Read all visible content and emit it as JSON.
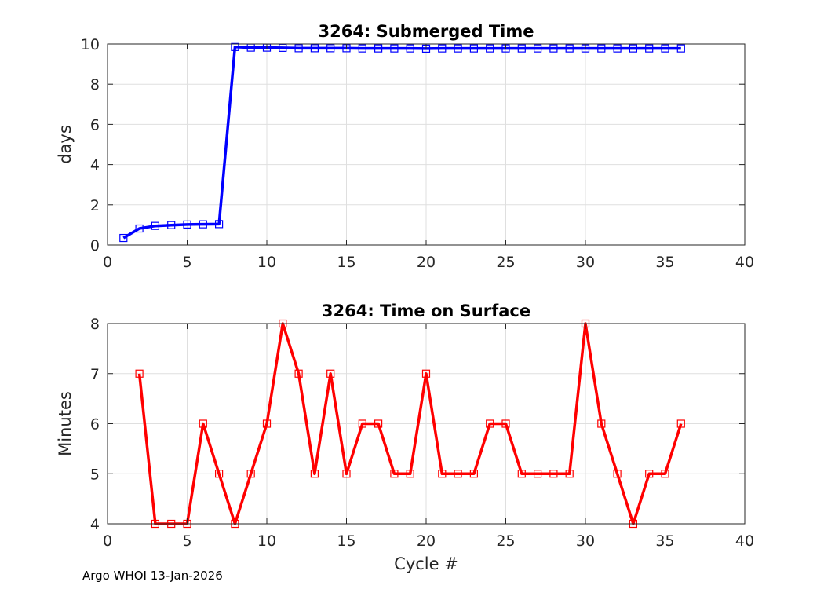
{
  "footer": {
    "text": "Argo WHOI 13-Jan-2026"
  },
  "chart_data": [
    {
      "type": "line",
      "title": "3264: Submerged Time",
      "xlabel": "",
      "ylabel": "days",
      "xlim": [
        0,
        40
      ],
      "ylim": [
        0,
        10
      ],
      "xticks": [
        0,
        5,
        10,
        15,
        20,
        25,
        30,
        35,
        40
      ],
      "yticks": [
        0,
        2,
        4,
        6,
        8,
        10
      ],
      "grid": true,
      "color": "#0000ff",
      "marker": "square",
      "x": [
        1,
        2,
        3,
        4,
        5,
        6,
        7,
        8,
        9,
        10,
        11,
        12,
        13,
        14,
        15,
        16,
        17,
        18,
        19,
        20,
        21,
        22,
        23,
        24,
        25,
        26,
        27,
        28,
        29,
        30,
        31,
        32,
        33,
        34,
        35,
        36
      ],
      "values": [
        0.35,
        0.82,
        0.95,
        0.99,
        1.02,
        1.03,
        1.04,
        9.85,
        9.82,
        9.82,
        9.81,
        9.79,
        9.79,
        9.79,
        9.79,
        9.78,
        9.78,
        9.78,
        9.78,
        9.77,
        9.78,
        9.78,
        9.78,
        9.78,
        9.78,
        9.78,
        9.78,
        9.78,
        9.78,
        9.78,
        9.78,
        9.78,
        9.78,
        9.78,
        9.78,
        9.78
      ]
    },
    {
      "type": "line",
      "title": "3264: Time on Surface",
      "xlabel": "Cycle #",
      "ylabel": "Minutes",
      "xlim": [
        0,
        40
      ],
      "ylim": [
        4,
        8
      ],
      "xticks": [
        0,
        5,
        10,
        15,
        20,
        25,
        30,
        35,
        40
      ],
      "yticks": [
        4,
        5,
        6,
        7,
        8
      ],
      "grid": true,
      "color": "#ff0000",
      "marker": "square",
      "x": [
        2,
        3,
        4,
        5,
        6,
        7,
        8,
        9,
        10,
        11,
        12,
        13,
        14,
        15,
        16,
        17,
        18,
        19,
        20,
        21,
        22,
        23,
        24,
        25,
        26,
        27,
        28,
        29,
        30,
        31,
        32,
        33,
        34,
        35,
        36
      ],
      "values": [
        7,
        4,
        4,
        4,
        6,
        5,
        4,
        5,
        6,
        8,
        7,
        5,
        7,
        5,
        6,
        6,
        5,
        5,
        7,
        5,
        5,
        5,
        6,
        6,
        5,
        5,
        5,
        5,
        8,
        6,
        5,
        4,
        5,
        5,
        6
      ]
    }
  ]
}
